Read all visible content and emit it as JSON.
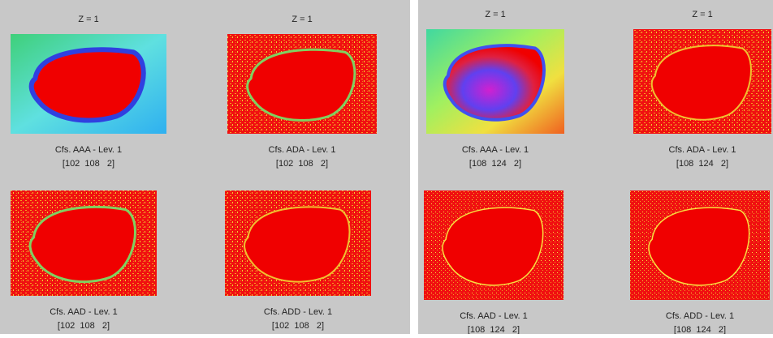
{
  "panels": [
    {
      "images": [
        {
          "title": "Z = 1",
          "caption": "Cfs. AAA - Lev. 1",
          "size": "[102  108   2]"
        },
        {
          "title": "Z = 1",
          "caption": "Cfs. ADA - Lev. 1",
          "size": "[102  108   2]"
        },
        {
          "caption": "Cfs. AAD - Lev. 1",
          "size": "[102  108   2]"
        },
        {
          "caption": "Cfs. ADD - Lev. 1",
          "size": "[102  108   2]"
        }
      ]
    },
    {
      "images": [
        {
          "title": "Z = 1",
          "caption": "Cfs. AAA - Lev. 1",
          "size": "[108  124   2]"
        },
        {
          "title": "Z = 1",
          "caption": "Cfs. ADA - Lev. 1",
          "size": "[108  124   2]"
        },
        {
          "caption": "Cfs. AAD - Lev. 1",
          "size": "[108  124   2]"
        },
        {
          "caption": "Cfs. ADD - Lev. 1",
          "size": "[108  124   2]"
        }
      ]
    }
  ]
}
